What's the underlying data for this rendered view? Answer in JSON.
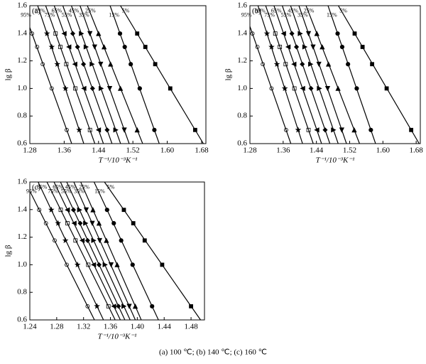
{
  "caption": "(a) 100 ℃; (b) 140 ℃; (c) 160 ℃",
  "chart_data": [
    {
      "type": "scatter",
      "panel_label": "(a)",
      "x_label": "T⁻¹/10⁻³K⁻¹",
      "y_label": "lg β",
      "xlim": [
        1.28,
        1.69
      ],
      "ylim": [
        0.6,
        1.6
      ],
      "xticks": [
        1.28,
        1.36,
        1.44,
        1.52,
        {
          "value": 1.6,
          "label": "1.60"
        },
        1.68
      ],
      "yticks": [
        0.6,
        0.8,
        {
          "value": 1.0,
          "label": "1.0"
        },
        1.2,
        1.4,
        1.6
      ],
      "y": [
        1.398,
        1.301,
        1.176,
        1.0,
        0.699
      ],
      "series": [
        {
          "name": "95%",
          "marker": "circle-open",
          "color": "#000",
          "x": [
            1.285,
            1.297,
            1.31,
            1.331,
            1.366
          ]
        },
        {
          "name": "85%",
          "marker": "star",
          "color": "#000",
          "x": [
            1.32,
            1.331,
            1.344,
            1.363,
            1.395
          ]
        },
        {
          "name": "75%",
          "marker": "square-open",
          "color": "#000",
          "x": [
            1.34,
            1.351,
            1.365,
            1.386,
            1.42
          ]
        },
        {
          "name": "65%",
          "marker": "triangle-left",
          "color": "#000",
          "x": [
            1.36,
            1.371,
            1.385,
            1.406,
            1.44
          ]
        },
        {
          "name": "55%",
          "marker": "diamond",
          "color": "#000",
          "x": [
            1.38,
            1.391,
            1.405,
            1.426,
            1.46
          ]
        },
        {
          "name": "45%",
          "marker": "triangle-right",
          "color": "#000",
          "x": [
            1.4,
            1.411,
            1.425,
            1.446,
            1.48
          ]
        },
        {
          "name": "35%",
          "marker": "triangle-down",
          "color": "#000",
          "x": [
            1.42,
            1.431,
            1.445,
            1.466,
            1.5
          ]
        },
        {
          "name": "25%",
          "marker": "triangle-up",
          "color": "#000",
          "x": [
            1.44,
            1.453,
            1.468,
            1.491,
            1.53
          ]
        },
        {
          "name": "15%",
          "marker": "circle",
          "color": "#000",
          "x": [
            1.49,
            1.501,
            1.515,
            1.536,
            1.57
          ]
        },
        {
          "name": "5%",
          "marker": "square",
          "color": "#000",
          "x": [
            1.53,
            1.549,
            1.572,
            1.607,
            1.665
          ]
        }
      ]
    },
    {
      "type": "scatter",
      "panel_label": "(b)",
      "x_label": "T⁻¹/10⁻³K⁻¹",
      "y_label": "lg β",
      "xlim": [
        1.28,
        1.69
      ],
      "ylim": [
        0.6,
        1.6
      ],
      "xticks": [
        1.28,
        1.36,
        1.44,
        1.52,
        {
          "value": 1.6,
          "label": "1.60"
        },
        1.68
      ],
      "yticks": [
        0.6,
        0.8,
        {
          "value": 1.0,
          "label": "1.0"
        },
        1.2,
        1.4,
        1.6
      ],
      "y": [
        1.398,
        1.301,
        1.176,
        1.0,
        0.699
      ],
      "series": [
        {
          "name": "95%",
          "marker": "circle-open",
          "color": "#000",
          "x": [
            1.286,
            1.298,
            1.311,
            1.332,
            1.367
          ]
        },
        {
          "name": "85%",
          "marker": "star",
          "color": "#000",
          "x": [
            1.321,
            1.332,
            1.345,
            1.364,
            1.396
          ]
        },
        {
          "name": "75%",
          "marker": "square-open",
          "color": "#000",
          "x": [
            1.341,
            1.352,
            1.366,
            1.387,
            1.421
          ]
        },
        {
          "name": "65%",
          "marker": "triangle-left",
          "color": "#000",
          "x": [
            1.361,
            1.372,
            1.386,
            1.407,
            1.441
          ]
        },
        {
          "name": "55%",
          "marker": "diamond",
          "color": "#000",
          "x": [
            1.381,
            1.392,
            1.406,
            1.427,
            1.461
          ]
        },
        {
          "name": "45%",
          "marker": "triangle-right",
          "color": "#000",
          "x": [
            1.401,
            1.412,
            1.426,
            1.447,
            1.481
          ]
        },
        {
          "name": "35%",
          "marker": "triangle-down",
          "color": "#000",
          "x": [
            1.421,
            1.432,
            1.446,
            1.467,
            1.501
          ]
        },
        {
          "name": "25%",
          "marker": "triangle-up",
          "color": "#000",
          "x": [
            1.441,
            1.454,
            1.469,
            1.492,
            1.531
          ]
        },
        {
          "name": "15%",
          "marker": "circle",
          "color": "#000",
          "x": [
            1.491,
            1.502,
            1.516,
            1.537,
            1.571
          ]
        },
        {
          "name": "5%",
          "marker": "square",
          "color": "#000",
          "x": [
            1.532,
            1.551,
            1.574,
            1.609,
            1.668
          ]
        }
      ]
    },
    {
      "type": "scatter",
      "panel_label": "(c)",
      "x_label": "T⁻¹/10⁻³K⁻¹",
      "y_label": "lg β",
      "xlim": [
        1.24,
        1.5
      ],
      "ylim": [
        0.6,
        1.6
      ],
      "xticks": [
        1.24,
        1.28,
        1.32,
        1.36,
        {
          "value": 1.4,
          "label": "1.40"
        },
        1.44,
        1.48
      ],
      "yticks": [
        0.6,
        0.8,
        {
          "value": 1.0,
          "label": "1.0"
        },
        1.2,
        1.4,
        1.6
      ],
      "y": [
        1.398,
        1.301,
        1.176,
        1.0,
        0.699
      ],
      "series": [
        {
          "name": "95%",
          "marker": "circle-open",
          "color": "#000",
          "x": [
            1.254,
            1.264,
            1.277,
            1.295,
            1.326
          ]
        },
        {
          "name": "85%",
          "marker": "star",
          "color": "#000",
          "x": [
            1.272,
            1.282,
            1.293,
            1.311,
            1.34
          ]
        },
        {
          "name": "75%",
          "marker": "square-open",
          "color": "#000",
          "x": [
            1.286,
            1.296,
            1.308,
            1.327,
            1.357
          ]
        },
        {
          "name": "65%",
          "marker": "triangle-left",
          "color": "#000",
          "x": [
            1.296,
            1.306,
            1.318,
            1.335,
            1.365
          ]
        },
        {
          "name": "55%",
          "marker": "diamond",
          "color": "#000",
          "x": [
            1.305,
            1.315,
            1.326,
            1.343,
            1.372
          ]
        },
        {
          "name": "45%",
          "marker": "triangle-right",
          "color": "#000",
          "x": [
            1.314,
            1.323,
            1.335,
            1.352,
            1.38
          ]
        },
        {
          "name": "35%",
          "marker": "triangle-down",
          "color": "#000",
          "x": [
            1.324,
            1.333,
            1.344,
            1.361,
            1.388
          ]
        },
        {
          "name": "25%",
          "marker": "triangle-up",
          "color": "#000",
          "x": [
            1.334,
            1.343,
            1.354,
            1.37,
            1.397
          ]
        },
        {
          "name": "15%",
          "marker": "circle",
          "color": "#000",
          "x": [
            1.355,
            1.365,
            1.376,
            1.393,
            1.422
          ]
        },
        {
          "name": "5%",
          "marker": "square",
          "color": "#000",
          "x": [
            1.38,
            1.394,
            1.411,
            1.437,
            1.48
          ]
        }
      ]
    }
  ]
}
